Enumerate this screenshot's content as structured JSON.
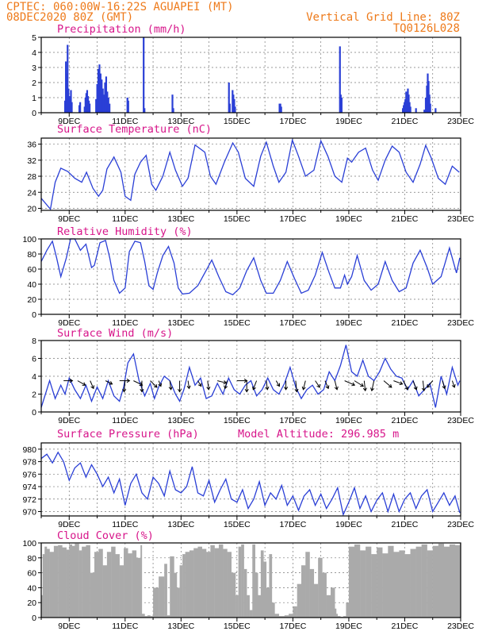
{
  "header": {
    "line1_left": "CPTEC:   060:00W-16:22S   AGUAPEI (MT)",
    "line2_left": "08DEC2020 80Z (GMT)",
    "line2_right": "Vertical Grid Line: 80Z",
    "line3_right": "TQ0126L028"
  },
  "colors": {
    "header": "#ee7a1a",
    "title": "#d7158a",
    "line": "#2a3fd6",
    "bar": "#2a3fd6",
    "cloud": "#aaaaaa",
    "arrow": "#000000"
  },
  "x_axis": {
    "start_day": 8,
    "end_day": 23,
    "tick_labels": [
      "9DEC",
      "11DEC",
      "13DEC",
      "15DEC",
      "17DEC",
      "19DEC",
      "21DEC",
      "23DEC"
    ]
  },
  "chart_data": [
    {
      "id": "precip",
      "type": "bar",
      "title": "Precipitation (mm/h)",
      "ylim": [
        0,
        5
      ],
      "yticks": [
        0,
        1,
        2,
        3,
        4,
        5
      ],
      "x": [
        8.85,
        8.88,
        8.91,
        8.94,
        8.97,
        9.0,
        9.03,
        9.06,
        9.09,
        9.36,
        9.39,
        9.55,
        9.58,
        9.61,
        9.64,
        9.67,
        9.7,
        9.73,
        9.96,
        10.0,
        10.04,
        10.08,
        10.12,
        10.16,
        10.2,
        10.24,
        10.28,
        10.32,
        10.36,
        10.4,
        10.44,
        11.08,
        11.11,
        11.66,
        11.69,
        12.69,
        12.72,
        14.71,
        14.74,
        14.84,
        14.87,
        14.9,
        14.93,
        16.52,
        16.55,
        16.58,
        18.68,
        18.71,
        18.74,
        20.93,
        20.96,
        20.99,
        21.02,
        21.05,
        21.08,
        21.11,
        21.14,
        21.17,
        21.2,
        21.4,
        21.7,
        21.75,
        21.79,
        21.82,
        21.85,
        21.88,
        21.91,
        22.1
      ],
      "values": [
        0.8,
        3.4,
        2.6,
        4.5,
        1.6,
        1.1,
        0.9,
        1.5,
        0.7,
        0.5,
        0.7,
        0.4,
        1.0,
        1.3,
        1.5,
        1.1,
        0.8,
        0.6,
        0.9,
        1.9,
        2.9,
        3.2,
        2.6,
        2.2,
        1.6,
        1.2,
        2.0,
        2.4,
        1.4,
        1.0,
        0.6,
        1.0,
        0.8,
        5.0,
        0.3,
        1.2,
        0.3,
        2.0,
        0.6,
        1.5,
        1.2,
        0.9,
        0.4,
        0.6,
        0.6,
        0.4,
        4.4,
        1.2,
        1.0,
        0.3,
        0.5,
        0.7,
        0.9,
        1.4,
        0.8,
        1.6,
        1.2,
        0.7,
        0.4,
        0.3,
        0.2,
        1.0,
        1.8,
        2.6,
        2.1,
        1.2,
        0.6,
        0.3
      ]
    },
    {
      "id": "temp",
      "type": "line",
      "title": "Surface Temperature (nC)",
      "ylim": [
        19.5,
        37.5
      ],
      "yticks": [
        20,
        24,
        28,
        32,
        36
      ],
      "x": [
        8.0,
        8.33,
        8.5,
        8.7,
        8.95,
        9.2,
        9.45,
        9.62,
        9.85,
        10.05,
        10.2,
        10.35,
        10.6,
        10.85,
        11.0,
        11.2,
        11.35,
        11.55,
        11.75,
        11.95,
        12.1,
        12.35,
        12.6,
        12.8,
        13.05,
        13.25,
        13.5,
        13.85,
        14.05,
        14.25,
        14.55,
        14.85,
        15.05,
        15.3,
        15.6,
        15.85,
        16.05,
        16.3,
        16.5,
        16.75,
        16.98,
        17.2,
        17.45,
        17.75,
        18.0,
        18.25,
        18.5,
        18.75,
        18.95,
        19.1,
        19.35,
        19.6,
        19.85,
        20.05,
        20.3,
        20.55,
        20.8,
        21.05,
        21.3,
        21.55,
        21.75,
        21.95,
        22.2,
        22.45,
        22.7,
        22.95
      ],
      "values": [
        22.5,
        19.8,
        26.5,
        30.0,
        29.2,
        27.5,
        26.5,
        29.0,
        25.0,
        23.0,
        24.5,
        29.8,
        32.8,
        29.0,
        23.0,
        22.0,
        28.5,
        31.5,
        33.2,
        26.0,
        24.5,
        28.0,
        34.0,
        29.5,
        25.5,
        27.5,
        35.8,
        34.0,
        28.0,
        26.0,
        31.5,
        36.3,
        34.0,
        27.5,
        25.5,
        33.0,
        36.5,
        30.5,
        26.5,
        29.0,
        37.0,
        33.0,
        28.0,
        29.5,
        36.8,
        33.0,
        28.0,
        26.5,
        32.5,
        31.5,
        34.0,
        35.0,
        29.5,
        27.0,
        32.0,
        35.5,
        34.0,
        29.0,
        26.5,
        31.0,
        35.7,
        32.5,
        27.5,
        26.0,
        30.5,
        29.0
      ]
    },
    {
      "id": "rh",
      "type": "line",
      "title": "Relative Humidity (%)",
      "ylim": [
        0,
        100
      ],
      "yticks": [
        0,
        20,
        40,
        60,
        80,
        100
      ],
      "x": [
        8.0,
        8.2,
        8.4,
        8.55,
        8.7,
        8.9,
        9.05,
        9.2,
        9.4,
        9.6,
        9.8,
        9.9,
        10.1,
        10.3,
        10.45,
        10.6,
        10.8,
        11.0,
        11.15,
        11.35,
        11.55,
        11.7,
        11.85,
        12.0,
        12.15,
        12.35,
        12.55,
        12.75,
        12.9,
        13.05,
        13.3,
        13.6,
        13.85,
        14.1,
        14.35,
        14.6,
        14.85,
        15.1,
        15.35,
        15.6,
        15.85,
        16.05,
        16.3,
        16.55,
        16.8,
        17.05,
        17.3,
        17.55,
        17.8,
        18.05,
        18.3,
        18.5,
        18.7,
        18.85,
        18.95,
        19.1,
        19.3,
        19.55,
        19.8,
        20.05,
        20.3,
        20.55,
        20.8,
        21.05,
        21.3,
        21.55,
        21.8,
        22.0,
        22.3,
        22.6,
        22.85,
        22.97
      ],
      "values": [
        70,
        85,
        97,
        75,
        50,
        75,
        100,
        100,
        85,
        93,
        62,
        65,
        95,
        98,
        75,
        45,
        28,
        35,
        83,
        97,
        95,
        70,
        38,
        33,
        55,
        78,
        90,
        68,
        35,
        27,
        28,
        38,
        55,
        72,
        50,
        30,
        26,
        35,
        58,
        75,
        45,
        28,
        28,
        45,
        70,
        48,
        28,
        32,
        52,
        82,
        55,
        35,
        35,
        52,
        40,
        50,
        78,
        45,
        32,
        40,
        70,
        45,
        30,
        35,
        68,
        85,
        62,
        40,
        50,
        88,
        55,
        75
      ]
    },
    {
      "id": "wind",
      "type": "line",
      "title": "Surface Wind (m/s)",
      "ylim": [
        0,
        8
      ],
      "yticks": [
        0,
        2,
        4,
        6,
        8
      ],
      "x": [
        8.0,
        8.15,
        8.3,
        8.5,
        8.7,
        8.85,
        9.0,
        9.2,
        9.4,
        9.6,
        9.8,
        10.0,
        10.2,
        10.4,
        10.6,
        10.8,
        10.95,
        11.1,
        11.3,
        11.5,
        11.7,
        11.9,
        12.05,
        12.2,
        12.4,
        12.6,
        12.8,
        12.95,
        13.1,
        13.3,
        13.5,
        13.7,
        13.9,
        14.1,
        14.3,
        14.5,
        14.7,
        14.9,
        15.1,
        15.3,
        15.5,
        15.7,
        15.9,
        16.1,
        16.3,
        16.5,
        16.7,
        16.9,
        17.1,
        17.3,
        17.5,
        17.7,
        17.9,
        18.1,
        18.3,
        18.5,
        18.7,
        18.9,
        19.1,
        19.3,
        19.5,
        19.7,
        19.9,
        20.1,
        20.3,
        20.5,
        20.7,
        20.9,
        21.1,
        21.3,
        21.5,
        21.7,
        21.9,
        22.1,
        22.3,
        22.5,
        22.7,
        22.9,
        22.97
      ],
      "values": [
        0.5,
        2.0,
        3.5,
        1.5,
        3.0,
        2.0,
        3.8,
        2.5,
        1.5,
        3.0,
        1.2,
        2.8,
        1.5,
        3.5,
        1.8,
        1.2,
        2.8,
        5.5,
        6.5,
        3.5,
        1.8,
        3.2,
        1.5,
        2.8,
        4.0,
        3.5,
        2.0,
        1.2,
        2.5,
        5.0,
        3.0,
        3.8,
        1.5,
        1.8,
        3.2,
        2.0,
        3.8,
        2.5,
        2.0,
        3.0,
        3.5,
        1.8,
        2.5,
        3.8,
        2.5,
        2.0,
        3.2,
        5.0,
        2.8,
        1.5,
        2.5,
        3.0,
        2.0,
        2.5,
        4.5,
        3.5,
        5.2,
        7.5,
        4.5,
        4.0,
        5.8,
        4.0,
        3.5,
        4.5,
        6.0,
        4.8,
        4.0,
        3.8,
        2.5,
        3.5,
        1.8,
        2.5,
        3.2,
        0.5,
        4.0,
        2.0,
        5.0,
        3.0,
        3.5
      ]
    },
    {
      "id": "pressure",
      "type": "line",
      "title": "Surface Pressure (hPa)",
      "annotation": "Model Altitude: 296.985 m",
      "ylim": [
        969.3,
        981.0
      ],
      "yticks": [
        970,
        972,
        974,
        976,
        978,
        980
      ],
      "x": [
        8.0,
        8.2,
        8.4,
        8.6,
        8.8,
        9.0,
        9.2,
        9.4,
        9.6,
        9.8,
        10.0,
        10.2,
        10.4,
        10.6,
        10.8,
        11.0,
        11.2,
        11.4,
        11.6,
        11.8,
        12.0,
        12.2,
        12.4,
        12.6,
        12.8,
        13.0,
        13.2,
        13.4,
        13.6,
        13.8,
        14.0,
        14.2,
        14.4,
        14.6,
        14.8,
        15.0,
        15.2,
        15.4,
        15.6,
        15.8,
        16.0,
        16.2,
        16.4,
        16.6,
        16.8,
        17.0,
        17.2,
        17.4,
        17.6,
        17.8,
        18.0,
        18.2,
        18.4,
        18.6,
        18.8,
        19.0,
        19.2,
        19.4,
        19.6,
        19.8,
        20.0,
        20.2,
        20.4,
        20.6,
        20.8,
        21.0,
        21.2,
        21.4,
        21.6,
        21.8,
        22.0,
        22.2,
        22.4,
        22.6,
        22.8,
        22.97
      ],
      "values": [
        978.5,
        979.2,
        977.8,
        979.5,
        978.0,
        975.0,
        977.0,
        977.8,
        975.5,
        977.5,
        976.0,
        974.0,
        975.5,
        973.0,
        975.2,
        971.0,
        974.5,
        976.0,
        973.0,
        972.0,
        975.5,
        974.5,
        972.5,
        976.5,
        973.5,
        973.0,
        974.0,
        977.2,
        973.0,
        972.5,
        975.0,
        971.5,
        973.5,
        975.2,
        972.0,
        971.5,
        973.5,
        970.5,
        972.0,
        974.8,
        971.0,
        973.0,
        972.0,
        974.2,
        971.0,
        972.5,
        970.2,
        972.5,
        973.5,
        971.0,
        972.8,
        970.5,
        972.0,
        973.8,
        969.5,
        971.5,
        973.8,
        970.5,
        972.5,
        970.0,
        971.8,
        973.0,
        970.0,
        972.8,
        970.0,
        972.0,
        973.0,
        970.5,
        972.5,
        973.5,
        970.0,
        971.5,
        973.0,
        971.0,
        972.5,
        969.8
      ]
    },
    {
      "id": "cloud",
      "type": "area",
      "title": "Cloud Cover (%)",
      "ylim": [
        0,
        100
      ],
      "yticks": [
        0,
        20,
        40,
        60,
        80,
        100
      ],
      "x": [
        8.0,
        8.05,
        8.12,
        8.2,
        8.3,
        8.45,
        8.6,
        8.75,
        8.9,
        9.0,
        9.1,
        9.2,
        9.35,
        9.45,
        9.6,
        9.75,
        9.9,
        10.05,
        10.2,
        10.35,
        10.5,
        10.65,
        10.8,
        10.95,
        11.1,
        11.25,
        11.4,
        11.55,
        11.6,
        11.7,
        11.8,
        11.9,
        12.0,
        12.2,
        12.4,
        12.5,
        12.6,
        12.75,
        12.85,
        12.95,
        13.05,
        13.15,
        13.3,
        13.45,
        13.6,
        13.75,
        13.9,
        14.05,
        14.2,
        14.35,
        14.5,
        14.65,
        14.8,
        14.95,
        15.05,
        15.15,
        15.25,
        15.35,
        15.45,
        15.55,
        15.65,
        15.75,
        15.85,
        15.95,
        16.05,
        16.15,
        16.25,
        16.35,
        16.5,
        16.7,
        16.85,
        17.0,
        17.15,
        17.3,
        17.45,
        17.6,
        17.75,
        17.9,
        18.05,
        18.2,
        18.35,
        18.5,
        18.55,
        18.6,
        18.7,
        18.8,
        18.9,
        19.0,
        19.2,
        19.4,
        19.6,
        19.8,
        20.0,
        20.2,
        20.4,
        20.6,
        20.8,
        21.0,
        21.2,
        21.4,
        21.6,
        21.8,
        22.0,
        22.2,
        22.4,
        22.6,
        22.8,
        22.97
      ],
      "values": [
        30,
        85,
        95,
        92,
        88,
        96,
        97,
        94,
        91,
        98,
        96,
        99,
        90,
        95,
        97,
        60,
        88,
        92,
        70,
        88,
        95,
        85,
        70,
        93,
        86,
        90,
        80,
        97,
        5,
        2,
        3,
        2,
        40,
        55,
        72,
        3,
        82,
        60,
        40,
        70,
        85,
        88,
        90,
        93,
        95,
        92,
        88,
        97,
        93,
        98,
        92,
        88,
        60,
        30,
        95,
        98,
        65,
        30,
        10,
        98,
        60,
        30,
        90,
        75,
        40,
        85,
        20,
        5,
        2,
        3,
        5,
        15,
        45,
        70,
        88,
        65,
        45,
        80,
        60,
        30,
        40,
        12,
        5,
        2,
        1,
        2,
        20,
        95,
        98,
        90,
        95,
        85,
        94,
        86,
        96,
        88,
        90,
        85,
        92,
        95,
        98,
        90,
        96,
        99,
        95,
        98,
        97,
        99
      ]
    }
  ],
  "wind_arrows": {
    "note": "",
    "x": [
      8.8,
      9.3,
      9.75,
      10.3,
      10.8,
      11.0,
      11.3,
      11.6,
      11.9,
      12.2,
      12.6,
      12.95,
      13.25,
      13.6,
      13.95,
      14.3,
      14.65,
      15.0,
      15.35,
      15.7,
      16.05,
      16.4,
      16.75,
      17.1,
      17.45,
      17.8,
      18.15,
      18.5,
      18.85,
      19.2,
      19.55,
      19.9,
      20.25,
      20.6,
      20.95,
      21.3,
      21.65,
      22.0,
      22.35,
      22.7
    ],
    "u": [
      0.8,
      0.7,
      0.3,
      0.6,
      0.9,
      -0.1,
      0.8,
      0.0,
      0.6,
      0.2,
      0.1,
      0.0,
      0.1,
      0.3,
      0.1,
      0.8,
      -0.2,
      0.9,
      0.0,
      -0.3,
      0.1,
      0.3,
      0.0,
      0.1,
      -0.2,
      0.4,
      0.3,
      0.2,
      0.9,
      0.8,
      0.1,
      -0.2,
      0.7,
      0.8,
      0.4,
      0.3,
      0.1,
      -0.5,
      0.2,
      0.2
    ],
    "v": [
      0.0,
      -0.4,
      -0.7,
      -0.3,
      0.0,
      -1.0,
      -0.4,
      -1.0,
      -0.6,
      -0.5,
      -0.8,
      -1.0,
      -0.7,
      -0.5,
      -0.8,
      -0.2,
      -0.7,
      0.0,
      -1.0,
      -0.8,
      -0.8,
      -0.5,
      -0.8,
      -1.0,
      -0.8,
      -0.6,
      -0.7,
      -0.8,
      -0.4,
      -0.5,
      -0.9,
      -0.9,
      -0.6,
      -0.3,
      -0.8,
      -0.8,
      -0.9,
      -0.6,
      -0.7,
      -0.6
    ]
  }
}
